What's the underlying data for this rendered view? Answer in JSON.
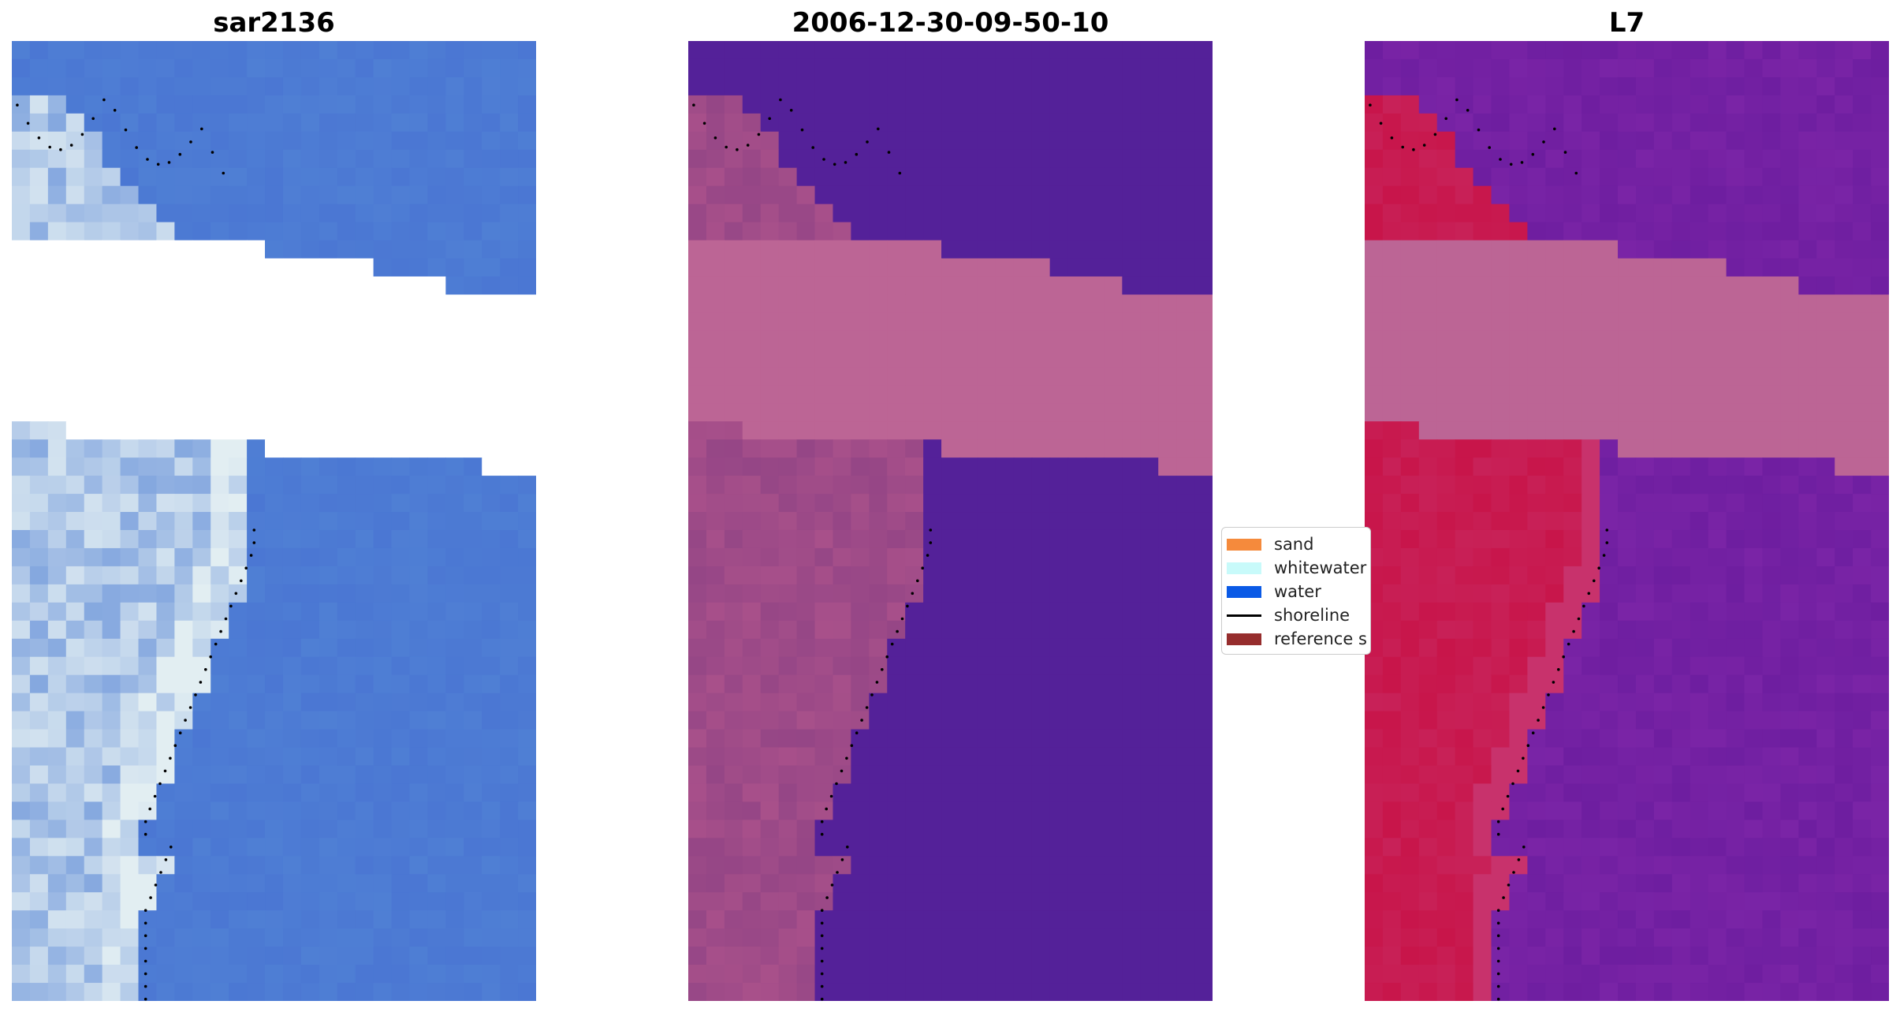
{
  "panels": [
    {
      "title": "sar2136",
      "kind": "rgb"
    },
    {
      "title": "2006-12-30-09-50-10",
      "kind": "classified"
    },
    {
      "title": "L7",
      "kind": "index"
    }
  ],
  "legend": {
    "items": [
      {
        "label": "sand",
        "color": "#f58a3c",
        "kind": "patch"
      },
      {
        "label": "whitewater",
        "color": "#c8fafa",
        "kind": "patch"
      },
      {
        "label": "water",
        "color": "#0a5ae6",
        "kind": "patch"
      },
      {
        "label": "shoreline",
        "color": "#000000",
        "kind": "line"
      },
      {
        "label": "reference s",
        "color": "#962d2d",
        "kind": "patch"
      }
    ]
  },
  "colors": {
    "masked_band": "#bc6595",
    "classified_water": "#542199",
    "index_water": "#6e1ea0",
    "index_land": "#c8154a",
    "rgb_water": "#4f7fd4",
    "rgb_surf": "#eaf4f4",
    "shoreline_points": "#000000"
  }
}
